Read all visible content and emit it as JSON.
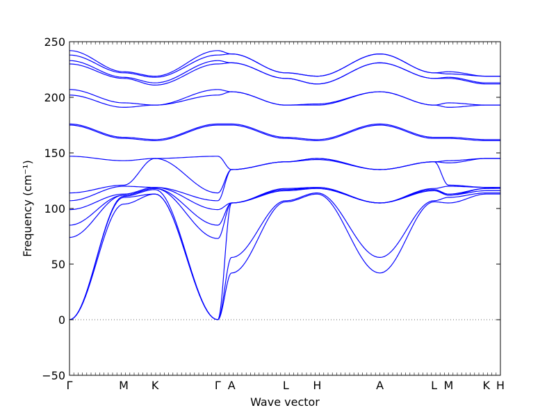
{
  "chart_data": {
    "type": "line",
    "title": "",
    "xlabel": "Wave vector",
    "ylabel": "Frequency (cm⁻¹)",
    "ylim": [
      -50,
      250
    ],
    "yticks": [
      -50,
      0,
      50,
      100,
      150,
      200,
      250
    ],
    "grid": false,
    "legend": "none",
    "line_color": "#0000ff",
    "zero_line_color": "#333333",
    "path_labels": [
      "Γ",
      "M",
      "K",
      "Γ",
      "A",
      "L",
      "H",
      "A",
      "L",
      "M",
      "K",
      "H"
    ],
    "path_positions": [
      0.0,
      0.577,
      0.91,
      1.577,
      1.724,
      2.301,
      2.634,
      3.301,
      3.878,
      4.032,
      4.433,
      4.583
    ],
    "segments": [
      {
        "from": 0,
        "to": 1,
        "s": "pol"
      },
      {
        "from": 1,
        "to": 2,
        "s": "pol"
      },
      {
        "from": 2,
        "to": 3,
        "s": "pol"
      },
      {
        "from": 3,
        "to": 4,
        "s": "pol"
      },
      {
        "from": 4,
        "to": 5,
        "s": "pol"
      },
      {
        "from": 5,
        "to": 6,
        "s": "pol"
      },
      {
        "from": 6,
        "to": 7,
        "s": "pol"
      },
      {
        "from": 7,
        "to": 8,
        "s": "pol"
      },
      {
        "from": 8,
        "to": 9,
        "s": "pol"
      },
      {
        "from": 9,
        "to": 10,
        "s": "pol"
      },
      {
        "from": 10,
        "to": 11,
        "s": "pol"
      }
    ],
    "bands": [
      {
        "name": "",
        "x": [
          0.0,
          0.577,
          0.91,
          1.577,
          1.724,
          2.301,
          2.634,
          3.301,
          3.878,
          4.032,
          4.433,
          4.583
        ],
        "y": [
          0,
          104,
          113,
          0,
          42,
          106,
          113,
          42,
          106,
          105,
          113,
          113
        ]
      },
      {
        "name": "",
        "x": [
          0.0,
          0.577,
          0.91,
          1.577,
          1.724,
          2.301,
          2.634,
          3.301,
          3.878,
          4.032,
          4.433,
          4.583
        ],
        "y": [
          0,
          110,
          113,
          0,
          56,
          107,
          114,
          56,
          107,
          110,
          114,
          114
        ]
      },
      {
        "name": "",
        "x": [
          0.0,
          0.577,
          0.91,
          1.577,
          1.724,
          2.301,
          2.634,
          3.301,
          3.878,
          4.032,
          4.433,
          4.583
        ],
        "y": [
          0,
          111,
          117,
          0,
          105,
          116,
          118,
          105,
          116,
          112,
          116,
          116
        ]
      },
      {
        "name": "",
        "x": [
          0.0,
          0.577,
          0.91,
          1.577,
          1.724,
          2.301,
          2.634,
          3.301,
          3.878,
          4.032,
          4.433,
          4.583
        ],
        "y": [
          74,
          112,
          118,
          73,
          105,
          117,
          118,
          105,
          117,
          112,
          118,
          118
        ]
      },
      {
        "name": "",
        "x": [
          0.0,
          0.577,
          0.91,
          1.577,
          1.724,
          2.301,
          2.634,
          3.301,
          3.878,
          4.032,
          4.433,
          4.583
        ],
        "y": [
          85,
          112,
          118,
          85,
          105,
          117,
          119,
          105,
          117,
          113,
          118,
          119
        ]
      },
      {
        "name": "",
        "x": [
          0.0,
          0.577,
          0.91,
          1.577,
          1.724,
          2.301,
          2.634,
          3.301,
          3.878,
          4.032,
          4.433,
          4.583
        ],
        "y": [
          99,
          113,
          119,
          99,
          105,
          118,
          119,
          105,
          118,
          120,
          119,
          119
        ]
      },
      {
        "name": "",
        "x": [
          0.0,
          0.577,
          0.91,
          1.577,
          1.724,
          2.301,
          2.634,
          3.301,
          3.878,
          4.032,
          4.433,
          4.583
        ],
        "y": [
          107,
          120,
          119,
          107,
          135,
          142,
          144,
          135,
          142,
          121,
          119,
          119
        ]
      },
      {
        "name": "",
        "x": [
          0.0,
          0.577,
          0.91,
          1.577,
          1.724,
          2.301,
          2.634,
          3.301,
          3.878,
          4.032,
          4.433,
          4.583
        ],
        "y": [
          114,
          121,
          145,
          114,
          135,
          142,
          145,
          135,
          142,
          141,
          145,
          145
        ]
      },
      {
        "name": "",
        "x": [
          0.0,
          0.577,
          0.91,
          1.577,
          1.724,
          2.301,
          2.634,
          3.301,
          3.878,
          4.032,
          4.433,
          4.583
        ],
        "y": [
          147,
          143,
          145,
          147,
          135,
          142,
          145,
          135,
          142,
          143,
          145,
          145
        ]
      },
      {
        "name": "",
        "x": [
          0.0,
          0.577,
          0.91,
          1.577,
          1.724,
          2.301,
          2.634,
          3.301,
          3.878,
          4.032,
          4.433,
          4.583
        ],
        "y": [
          175,
          163,
          161,
          175,
          175,
          163,
          161,
          175,
          163,
          163,
          161,
          161
        ]
      },
      {
        "name": "",
        "x": [
          0.0,
          0.577,
          0.91,
          1.577,
          1.724,
          2.301,
          2.634,
          3.301,
          3.878,
          4.032,
          4.433,
          4.583
        ],
        "y": [
          176,
          164,
          162,
          176,
          176,
          164,
          162,
          176,
          164,
          164,
          162,
          162
        ]
      },
      {
        "name": "",
        "x": [
          0.0,
          0.577,
          0.91,
          1.577,
          1.724,
          2.301,
          2.634,
          3.301,
          3.878,
          4.032,
          4.433,
          4.583
        ],
        "y": [
          202,
          191,
          193,
          202,
          205,
          193,
          193,
          205,
          193,
          191,
          193,
          193
        ]
      },
      {
        "name": "",
        "x": [
          0.0,
          0.577,
          0.91,
          1.577,
          1.724,
          2.301,
          2.634,
          3.301,
          3.878,
          4.032,
          4.433,
          4.583
        ],
        "y": [
          207,
          195,
          193,
          207,
          205,
          193,
          194,
          205,
          193,
          195,
          193,
          193
        ]
      },
      {
        "name": "",
        "x": [
          0.0,
          0.577,
          0.91,
          1.577,
          1.724,
          2.301,
          2.634,
          3.301,
          3.878,
          4.032,
          4.433,
          4.583
        ],
        "y": [
          230,
          217,
          211,
          230,
          231,
          217,
          212,
          231,
          217,
          217,
          212,
          212
        ]
      },
      {
        "name": "",
        "x": [
          0.0,
          0.577,
          0.91,
          1.577,
          1.724,
          2.301,
          2.634,
          3.301,
          3.878,
          4.032,
          4.433,
          4.583
        ],
        "y": [
          233,
          218,
          213,
          233,
          231,
          217,
          212,
          231,
          217,
          218,
          213,
          213
        ]
      },
      {
        "name": "",
        "x": [
          0.0,
          0.577,
          0.91,
          1.577,
          1.724,
          2.301,
          2.634,
          3.301,
          3.878,
          4.032,
          4.433,
          4.583
        ],
        "y": [
          238,
          222,
          218,
          238,
          239,
          222,
          219,
          239,
          222,
          221,
          219,
          219
        ]
      },
      {
        "name": "",
        "x": [
          0.0,
          0.577,
          0.91,
          1.577,
          1.724,
          2.301,
          2.634,
          3.301,
          3.878,
          4.032,
          4.433,
          4.583
        ],
        "y": [
          242,
          223,
          219,
          242,
          239,
          222,
          219,
          239,
          222,
          223,
          219,
          219
        ]
      }
    ]
  }
}
